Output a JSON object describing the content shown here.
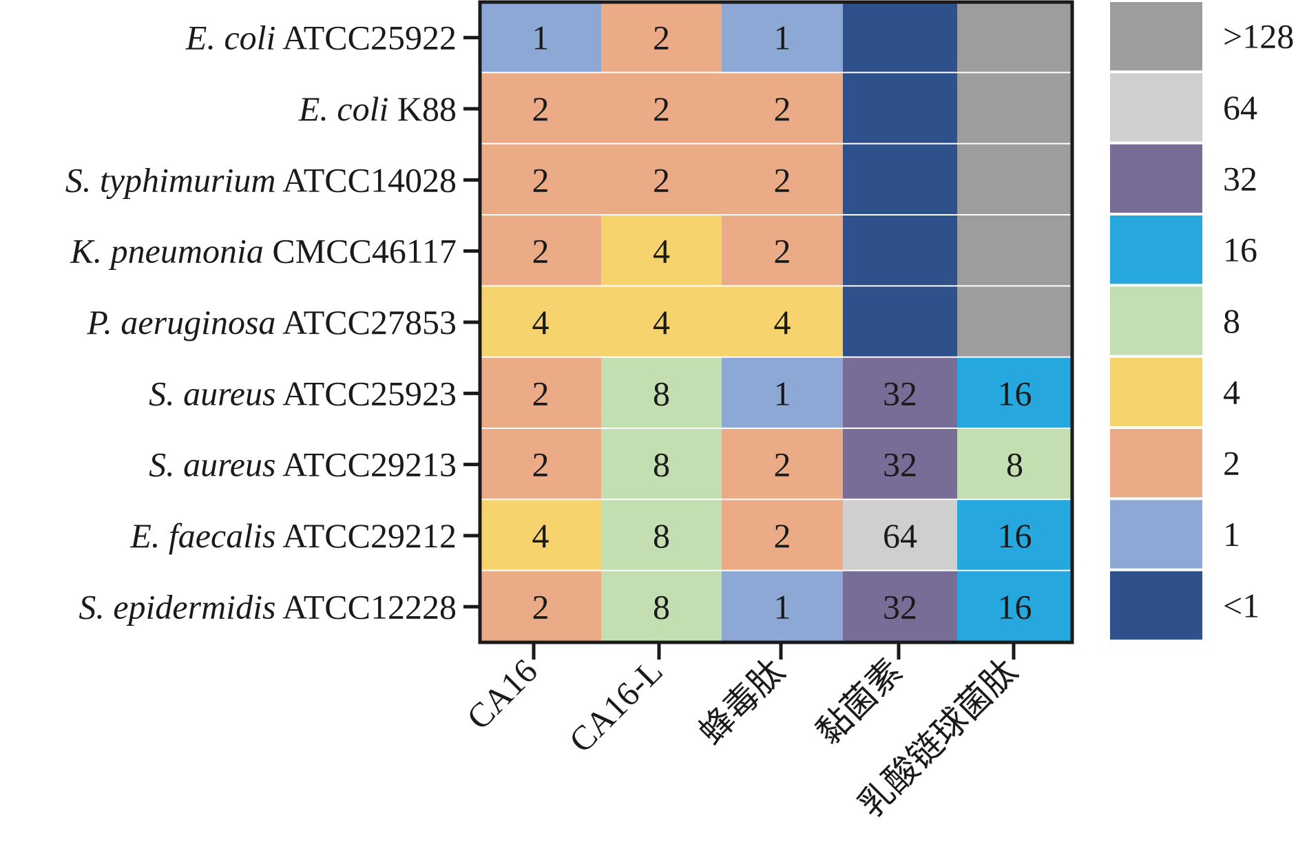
{
  "chart_data": {
    "type": "heatmap",
    "title": "",
    "xlabel": "",
    "ylabel": "",
    "rows": [
      {
        "label_italic": "E. coli",
        "label_rest": " ATCC25922"
      },
      {
        "label_italic": "E. coli",
        "label_rest": " K88"
      },
      {
        "label_italic": "S. typhimurium",
        "label_rest": " ATCC14028"
      },
      {
        "label_italic": "K. pneumonia",
        "label_rest": " CMCC46117"
      },
      {
        "label_italic": "P. aeruginosa",
        "label_rest": " ATCC27853"
      },
      {
        "label_italic": "S. aureus",
        "label_rest": " ATCC25923"
      },
      {
        "label_italic": "S. aureus",
        "label_rest": " ATCC29213"
      },
      {
        "label_italic": "E. faecalis",
        "label_rest": " ATCC29212"
      },
      {
        "label_italic": "S. epidermidis",
        "label_rest": " ATCC12228"
      }
    ],
    "columns": [
      "CA16",
      "CA16-L",
      "蜂毒肽",
      "黏菌素",
      "乳酸链球菌肽"
    ],
    "values": [
      [
        "1",
        "2",
        "1",
        "<1",
        ">128"
      ],
      [
        "2",
        "2",
        "2",
        "<1",
        ">128"
      ],
      [
        "2",
        "2",
        "2",
        "<1",
        ">128"
      ],
      [
        "2",
        "4",
        "2",
        "<1",
        ">128"
      ],
      [
        "4",
        "4",
        "4",
        "<1",
        ">128"
      ],
      [
        "2",
        "8",
        "1",
        "32",
        "16"
      ],
      [
        "2",
        "8",
        "2",
        "32",
        "8"
      ],
      [
        "4",
        "8",
        "2",
        "64",
        "16"
      ],
      [
        "2",
        "8",
        "1",
        "32",
        "16"
      ]
    ],
    "hidden_labels": [
      "<1",
      ">128"
    ],
    "legend": [
      {
        "label": ">128",
        "color": "#9d9d9d"
      },
      {
        "label": "64",
        "color": "#cfcfcf"
      },
      {
        "label": "32",
        "color": "#786d97"
      },
      {
        "label": "16",
        "color": "#26a7de"
      },
      {
        "label": "8",
        "color": "#c3deb1"
      },
      {
        "label": "4",
        "color": "#f6d36c"
      },
      {
        "label": "2",
        "color": "#eaab86"
      },
      {
        "label": "1",
        "color": "#8ea8d5"
      },
      {
        "label": "<1",
        "color": "#2e508b"
      }
    ],
    "legend_position": "right"
  }
}
